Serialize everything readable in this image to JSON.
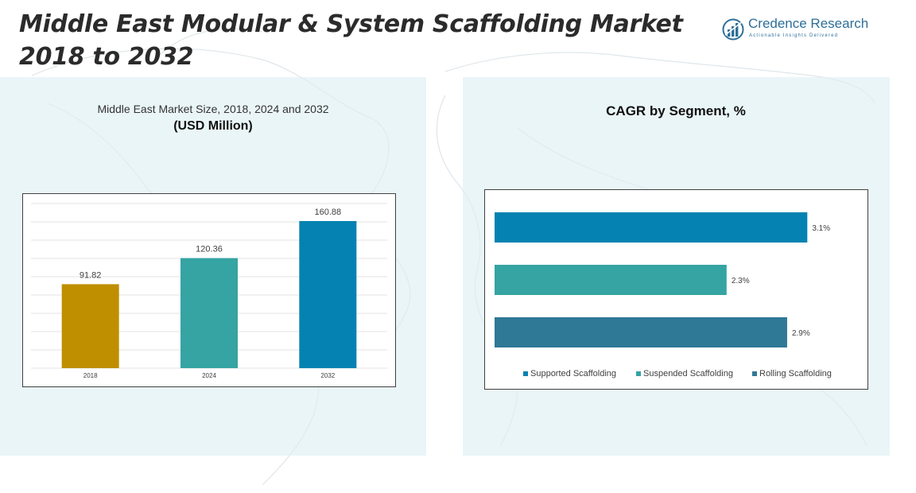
{
  "header": {
    "title_line1": "Middle East Modular & System Scaffolding Market",
    "title_line2": "2018 to 2032"
  },
  "logo": {
    "name": "Credence Research",
    "tagline": "Actionable Insights Delivered",
    "icon": "bar-chart-logo-icon"
  },
  "left_panel": {
    "subtitle": "Middle East Market Size, 2018, 2024 and 2032",
    "unit": "(USD Million)"
  },
  "right_panel": {
    "title": "CAGR by Segment, %"
  },
  "colors": {
    "gold": "#BF8F00",
    "teal": "#35A4A2",
    "blue": "#0582B1",
    "steel": "#2F7896",
    "panel": "#DDEFF3"
  },
  "chart_data": [
    {
      "type": "bar",
      "title": "Middle East Market Size, 2018, 2024 and 2032",
      "ylabel": "(USD Million)",
      "categories": [
        "2018",
        "2024",
        "2032"
      ],
      "values": [
        91.82,
        120.36,
        160.88
      ],
      "data_labels": [
        "91.82",
        "120.36",
        "160.88"
      ],
      "bar_colors": [
        "#BF8F00",
        "#35A4A2",
        "#0582B1"
      ],
      "ylim": [
        0,
        180
      ],
      "grid": true
    },
    {
      "type": "bar",
      "orientation": "horizontal",
      "title": "CAGR by Segment, %",
      "categories": [
        "Supported Scaffolding",
        "Suspended Scaffolding",
        "Rolling Scaffolding"
      ],
      "values": [
        3.1,
        2.3,
        2.9
      ],
      "data_labels": [
        "3.1%",
        "2.3%",
        "2.9%"
      ],
      "bar_colors": [
        "#0582B1",
        "#35A4A2",
        "#2F7896"
      ],
      "xlim": [
        0,
        3.2
      ],
      "legend": [
        {
          "name": "Supported Scaffolding",
          "color": "#0582B1"
        },
        {
          "name": "Suspended Scaffolding",
          "color": "#35A4A2"
        },
        {
          "name": "Rolling Scaffolding",
          "color": "#2F7896"
        }
      ],
      "legend_position": "bottom",
      "grid": false
    }
  ]
}
